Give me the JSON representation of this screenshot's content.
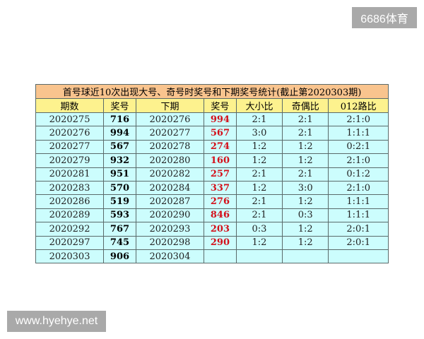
{
  "watermark_top": "6686体育",
  "watermark_bottom": "www.hyehye.net",
  "table": {
    "title": "首号球近10次出现大号、奇号时奖号和下期奖号统计(截止第2020303期)",
    "headers": [
      "期数",
      "奖号",
      "下期",
      "奖号",
      "大小比",
      "奇偶比",
      "012路比"
    ],
    "rows": [
      [
        "2020275",
        "716",
        "2020276",
        "994",
        "2:1",
        "2:1",
        "2:1:0"
      ],
      [
        "2020276",
        "994",
        "2020277",
        "567",
        "3:0",
        "2:1",
        "1:1:1"
      ],
      [
        "2020277",
        "567",
        "2020278",
        "274",
        "1:2",
        "1:2",
        "0:2:1"
      ],
      [
        "2020279",
        "932",
        "2020280",
        "160",
        "1:2",
        "1:2",
        "2:1:0"
      ],
      [
        "2020281",
        "951",
        "2020282",
        "257",
        "2:1",
        "2:1",
        "0:1:2"
      ],
      [
        "2020283",
        "570",
        "2020284",
        "337",
        "1:2",
        "3:0",
        "2:1:0"
      ],
      [
        "2020286",
        "519",
        "2020287",
        "276",
        "2:1",
        "1:2",
        "1:1:1"
      ],
      [
        "2020289",
        "593",
        "2020290",
        "846",
        "2:1",
        "0:3",
        "1:1:1"
      ],
      [
        "2020292",
        "767",
        "2020293",
        "203",
        "0:3",
        "1:2",
        "2:0:1"
      ],
      [
        "2020297",
        "745",
        "2020298",
        "290",
        "1:2",
        "1:2",
        "2:0:1"
      ],
      [
        "2020303",
        "906",
        "2020304",
        "",
        "",
        "",
        ""
      ]
    ]
  },
  "colors": {
    "title_bg": "#f9c48e",
    "header_bg": "#fdf28e",
    "row_bg": "#ccfdfd",
    "next_number": "#d4101a"
  }
}
